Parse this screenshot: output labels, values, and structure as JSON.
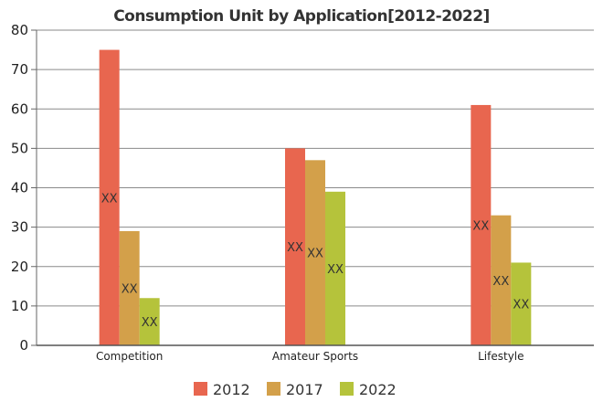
{
  "chart_data": {
    "type": "bar",
    "title": "Consumption Unit by  Application[2012-2022]",
    "xlabel": "",
    "ylabel": "",
    "ylim": [
      0,
      80
    ],
    "yticks": [
      0,
      10,
      20,
      30,
      40,
      50,
      60,
      70,
      80
    ],
    "grid": true,
    "legend_position": "bottom",
    "categories": [
      "Competition",
      "Amateur Sports",
      "Lifestyle"
    ],
    "series": [
      {
        "name": "2012",
        "color": "#e8664f",
        "values": [
          75,
          50,
          61
        ],
        "labels": [
          "XX",
          "XX",
          "XX"
        ]
      },
      {
        "name": "2017",
        "color": "#d3a04a",
        "values": [
          29,
          47,
          33
        ],
        "labels": [
          "XX",
          "XX",
          "XX"
        ]
      },
      {
        "name": "2022",
        "color": "#b5c33b",
        "values": [
          12,
          39,
          21
        ],
        "labels": [
          "XX",
          "XX",
          "XX"
        ]
      }
    ]
  }
}
